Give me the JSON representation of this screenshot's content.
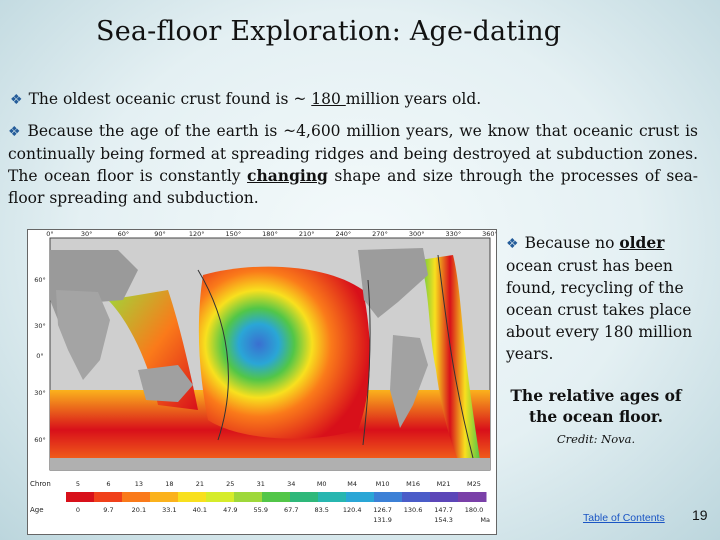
{
  "title": "Sea-floor Exploration:  Age-dating",
  "bullet1": {
    "pre": "The oldest oceanic crust found is ~ ",
    "value": "180 ",
    "post": "million years old."
  },
  "bullet2": {
    "pre": "Because the age of the earth is ~4,600 million years, we know that oceanic crust is continually being formed at spreading ridges and being destroyed at subduction zones. The ocean floor is constantly ",
    "emph": "changing",
    "post": " shape and size through the processes of sea-floor spreading and subduction."
  },
  "side_note": {
    "pre": "Because no ",
    "emph": "older",
    "post": " ocean crust has been found, recycling of the ocean crust takes place about every 180 million years."
  },
  "caption": "The relative ages of the ocean floor.",
  "credit": "Credit: Nova.",
  "footer": {
    "toc_link": "Table of Contents",
    "page_number": "19"
  },
  "map": {
    "top_longitudes": [
      "0°",
      "30°",
      "60°",
      "90°",
      "120°",
      "150°",
      "180°",
      "210°",
      "240°",
      "270°",
      "300°",
      "330°",
      "360°"
    ],
    "left_latitudes": [
      "60°",
      "30°",
      "0°",
      "30°",
      "60°"
    ],
    "chron_label": "Chron",
    "chron_values": [
      "5",
      "6",
      "13",
      "18",
      "21",
      "25",
      "31",
      "34",
      "M0",
      "M4",
      "M10",
      "M16",
      "M21",
      "M25"
    ],
    "age_label": "Age",
    "age_values_top": [
      "0",
      "9.7",
      "20.1",
      "33.1",
      "40.1",
      "47.9",
      "55.9",
      "67.7",
      "83.5",
      "120.4",
      "126.7",
      "130.6",
      "147.7",
      "180.0"
    ],
    "age_values_bottom": [
      "131.9",
      "154.3"
    ],
    "age_unit": "Ma",
    "colorbar": [
      "#d8101a",
      "#f0401a",
      "#fa7a1a",
      "#fbb21c",
      "#f8e01e",
      "#d6ec2a",
      "#9ed83a",
      "#52c648",
      "#2eb87a",
      "#27b6b0",
      "#2aa6d6",
      "#3c80d6",
      "#4a5cc8",
      "#5c46b8",
      "#7a40a8"
    ]
  }
}
